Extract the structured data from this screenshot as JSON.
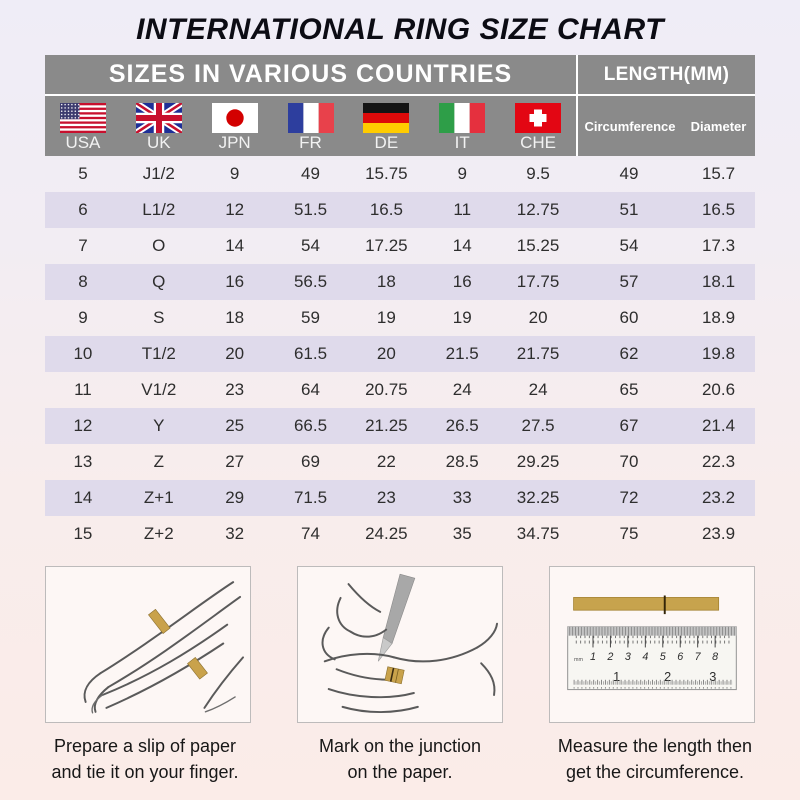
{
  "title": "INTERNATIONAL RING SIZE CHART",
  "chart_data": {
    "type": "table",
    "title": "INTERNATIONAL RING SIZE CHART",
    "column_groups": [
      {
        "label": "SIZES IN VARIOUS COUNTRIES",
        "span": 7
      },
      {
        "label": "LENGTH(MM)",
        "span": 2
      }
    ],
    "columns": [
      "USA",
      "UK",
      "JPN",
      "FR",
      "DE",
      "IT",
      "CHE",
      "Circumference",
      "Diameter"
    ],
    "rows": [
      [
        "5",
        "J1/2",
        "9",
        "49",
        "15.75",
        "9",
        "9.5",
        "49",
        "15.7"
      ],
      [
        "6",
        "L1/2",
        "12",
        "51.5",
        "16.5",
        "11",
        "12.75",
        "51",
        "16.5"
      ],
      [
        "7",
        "O",
        "14",
        "54",
        "17.25",
        "14",
        "15.25",
        "54",
        "17.3"
      ],
      [
        "8",
        "Q",
        "16",
        "56.5",
        "18",
        "16",
        "17.75",
        "57",
        "18.1"
      ],
      [
        "9",
        "S",
        "18",
        "59",
        "19",
        "19",
        "20",
        "60",
        "18.9"
      ],
      [
        "10",
        "T1/2",
        "20",
        "61.5",
        "20",
        "21.5",
        "21.75",
        "62",
        "19.8"
      ],
      [
        "11",
        "V1/2",
        "23",
        "64",
        "20.75",
        "24",
        "24",
        "65",
        "20.6"
      ],
      [
        "12",
        "Y",
        "25",
        "66.5",
        "21.25",
        "26.5",
        "27.5",
        "67",
        "21.4"
      ],
      [
        "13",
        "Z",
        "27",
        "69",
        "22",
        "28.5",
        "29.25",
        "70",
        "22.3"
      ],
      [
        "14",
        "Z+1",
        "29",
        "71.5",
        "23",
        "33",
        "32.25",
        "72",
        "23.2"
      ],
      [
        "15",
        "Z+2",
        "32",
        "74",
        "24.25",
        "35",
        "34.75",
        "75",
        "23.9"
      ]
    ]
  },
  "instructions": [
    {
      "icon": "hand-with-paper-strip",
      "line1": "Prepare a slip of paper",
      "line2": "and tie it on your finger."
    },
    {
      "icon": "pen-marking-junction",
      "line1": "Mark on the junction",
      "line2": "on the paper."
    },
    {
      "icon": "ruler-measuring-strip",
      "line1": "Measure the length then",
      "line2": "get the circumference."
    }
  ],
  "ruler": {
    "unit": "mm",
    "mm_numbers": [
      "1",
      "2",
      "3",
      "4",
      "5",
      "6",
      "7",
      "8"
    ],
    "inch_numbers": [
      "1",
      "2",
      "3"
    ]
  },
  "icons": [
    "usa-flag-icon",
    "uk-flag-icon",
    "jpn-flag-icon",
    "fr-flag-icon",
    "de-flag-icon",
    "it-flag-icon",
    "che-flag-icon"
  ],
  "colors": {
    "header_bg": "#8A8A8A",
    "header_text": "#FFFFFF",
    "row_stripe": "#DFDAEB",
    "paper_strip_gold": "#C7A34D",
    "bg_top": "#EFEDF7",
    "bg_bottom": "#FBECE8"
  }
}
